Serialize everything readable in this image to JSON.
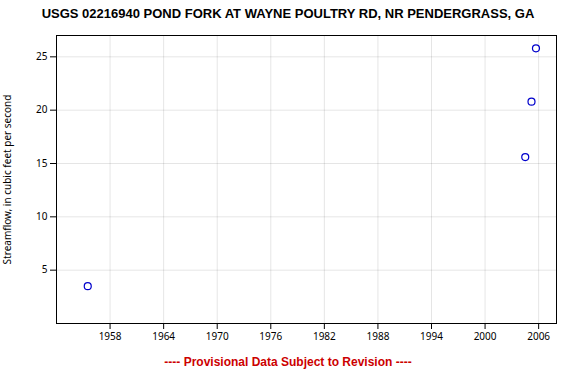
{
  "chart_data": {
    "type": "scatter",
    "title": "USGS 02216940 POND FORK AT WAYNE POULTRY RD, NR PENDERGRASS, GA",
    "ylabel": "Streamflow, in cubic feet per second",
    "annotations": [
      {
        "text": "---- Provisional Data Subject to Revision ----",
        "color": "#cc0000"
      }
    ],
    "x": [
      1955.5,
      2004.5,
      2005.2,
      2005.7
    ],
    "values": [
      3.5,
      15.6,
      20.8,
      25.8
    ],
    "color": "#0000cc",
    "marker": "circle",
    "xlim": [
      1952,
      2008
    ],
    "ylim": [
      0,
      27
    ],
    "xticks": [
      1958,
      1964,
      1970,
      1976,
      1982,
      1988,
      1994,
      2000,
      2006
    ],
    "yticks": [
      5,
      10,
      15,
      20,
      25
    ],
    "grid": true
  }
}
